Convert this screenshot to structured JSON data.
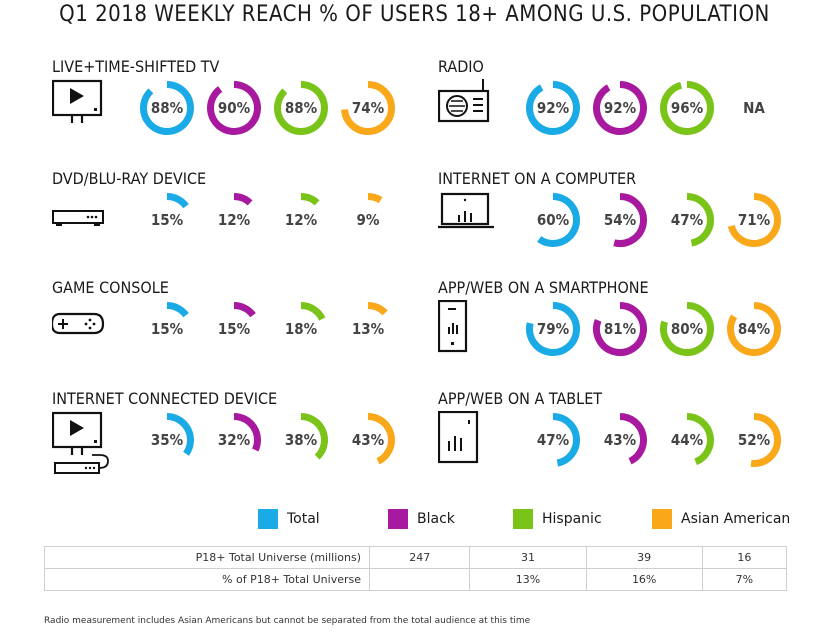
{
  "title": "Q1 2018 WEEKLY REACH % OF USERS 18+ AMONG U.S. POPULATION",
  "colors": {
    "Total": "#1aabe6",
    "Black": "#a7199e",
    "Hispanic": "#7ac41a",
    "Asian American": "#f9a81a"
  },
  "chart_data": {
    "type": "donut",
    "series_names": [
      "Total",
      "Black",
      "Hispanic",
      "Asian American"
    ],
    "categories": [
      {
        "name": "LIVE+TIME-SHIFTED TV",
        "icon": "tv-icon",
        "values": [
          88,
          90,
          88,
          74
        ],
        "labels": [
          "88%",
          "90%",
          "88%",
          "74%"
        ]
      },
      {
        "name": "RADIO",
        "icon": "radio-icon",
        "values": [
          92,
          92,
          96,
          null
        ],
        "labels": [
          "92%",
          "92%",
          "96%",
          "NA"
        ]
      },
      {
        "name": "DVD/BLU-RAY DEVICE",
        "icon": "dvd-player-icon",
        "values": [
          15,
          12,
          12,
          9
        ],
        "labels": [
          "15%",
          "12%",
          "12%",
          "9%"
        ]
      },
      {
        "name": "INTERNET ON A COMPUTER",
        "icon": "laptop-icon",
        "values": [
          60,
          54,
          47,
          71
        ],
        "labels": [
          "60%",
          "54%",
          "47%",
          "71%"
        ]
      },
      {
        "name": "GAME CONSOLE",
        "icon": "game-controller-icon",
        "values": [
          15,
          15,
          18,
          13
        ],
        "labels": [
          "15%",
          "15%",
          "18%",
          "13%"
        ]
      },
      {
        "name": "APP/WEB ON A SMARTPHONE",
        "icon": "smartphone-icon",
        "values": [
          79,
          81,
          80,
          84
        ],
        "labels": [
          "79%",
          "81%",
          "80%",
          "84%"
        ]
      },
      {
        "name": "INTERNET CONNECTED DEVICE",
        "icon": "connected-device-icon",
        "values": [
          35,
          32,
          38,
          43
        ],
        "labels": [
          "35%",
          "32%",
          "38%",
          "43%"
        ]
      },
      {
        "name": "APP/WEB ON A TABLET",
        "icon": "tablet-icon",
        "values": [
          47,
          43,
          44,
          52
        ],
        "labels": [
          "47%",
          "43%",
          "44%",
          "52%"
        ]
      }
    ]
  },
  "legend": [
    "Total",
    "Black",
    "Hispanic",
    "Asian American"
  ],
  "universe_table": {
    "rows": [
      {
        "label": "P18+ Total Universe (millions)",
        "values": [
          "247",
          "31",
          "39",
          "16"
        ]
      },
      {
        "label": "% of P18+ Total Universe",
        "values": [
          "",
          "13%",
          "16%",
          "7%"
        ]
      }
    ]
  },
  "footnote": "Radio measurement includes Asian Americans but cannot be separated from the total audience at this time"
}
